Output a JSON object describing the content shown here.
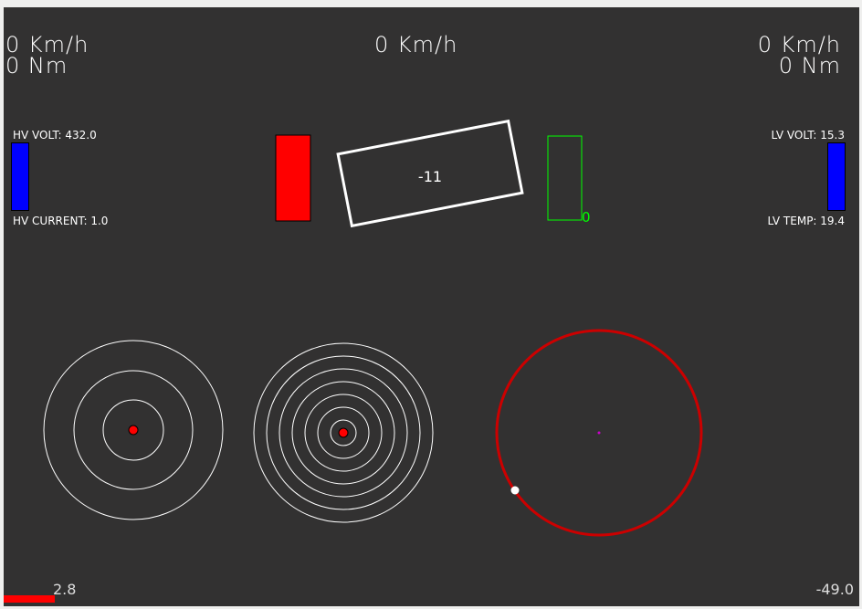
{
  "left": {
    "speed": "0 Km/h",
    "torque": "0 Nm"
  },
  "center": {
    "speed": "0 Km/h"
  },
  "right": {
    "speed": "0 Km/h",
    "torque": "0 Nm"
  },
  "hv": {
    "volt_label": "HV VOLT: 432.0",
    "current_label": "HV CURRENT: 1.0",
    "level": 1.0,
    "color": "#0000ff"
  },
  "lv": {
    "volt_label": "LV VOLT: 15.3",
    "temp_label": "LV TEMP: 19.4",
    "level": 1.0,
    "color": "#0000ff"
  },
  "steering": {
    "angle": -11,
    "label": "-11"
  },
  "brake": {
    "level": 1.0,
    "color": "#ff0000"
  },
  "throttle": {
    "level": 0,
    "label": "0",
    "color": "#00ff00"
  },
  "bottom": {
    "left_value": "2.8",
    "left_level": 0.06,
    "right_value": "-49.0"
  },
  "gg": {
    "ring_color": "#cc0000"
  }
}
